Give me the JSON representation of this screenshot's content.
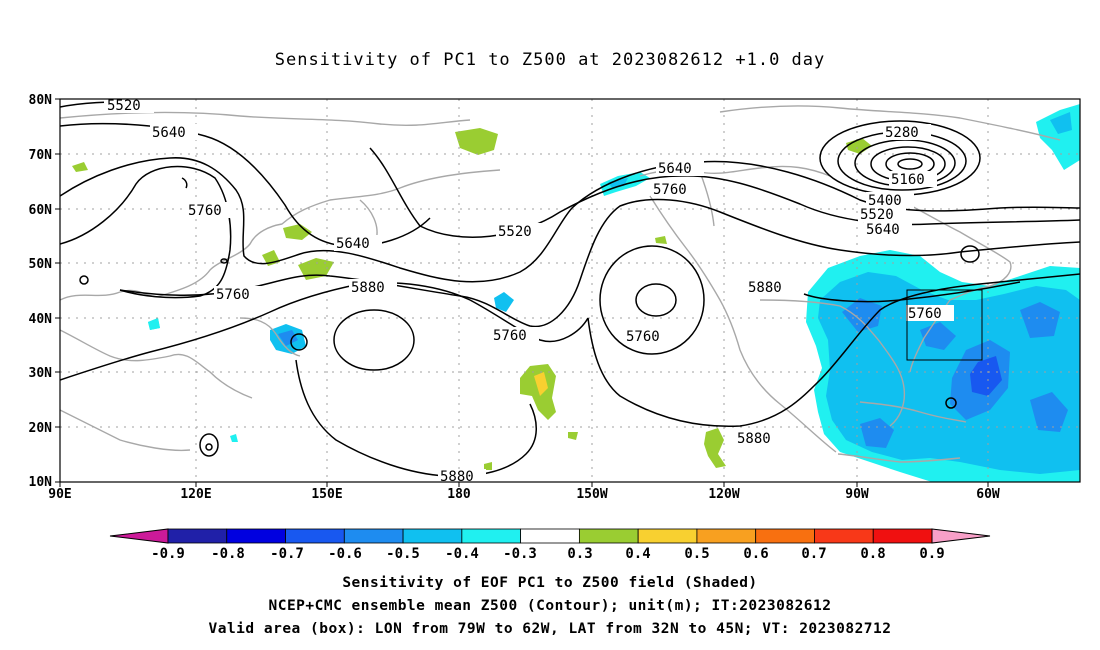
{
  "title": "Sensitivity of PC1 to Z500 at 2023082612 +1.0 day",
  "lat_labels": [
    "80N",
    "70N",
    "60N",
    "50N",
    "40N",
    "30N",
    "20N",
    "10N"
  ],
  "lon_labels": [
    "90E",
    "120E",
    "150E",
    "180",
    "150W",
    "120W",
    "90W",
    "60W"
  ],
  "contour_labels": {
    "c5520a": "5520",
    "c5640a": "5640",
    "c5760a": "5760",
    "c5640b": "5640",
    "c5760b": "5760",
    "c5880a": "5880",
    "c5520b": "5520",
    "c5760c": "5760",
    "c5640c": "5640",
    "c5760d": "5760",
    "c5760e": "5760",
    "c5880b": "5880",
    "c5880c": "5880",
    "c5280": "5280",
    "c5160": "5160",
    "c5400": "5400",
    "c5520c": "5520",
    "c5640d": "5640",
    "c5760f": "5760",
    "c5880d": "5880"
  },
  "colorbar": {
    "labels": [
      "-0.9",
      "-0.8",
      "-0.7",
      "-0.6",
      "-0.5",
      "-0.4",
      "-0.3",
      "0.3",
      "0.4",
      "0.5",
      "0.6",
      "0.7",
      "0.8",
      "0.9"
    ],
    "colors": [
      "#2020a8",
      "#0000e0",
      "#1858f0",
      "#1e8cf0",
      "#10c0f0",
      "#20f0f0",
      "#ffffff",
      "#9acd32",
      "#f8d030",
      "#f8a020",
      "#f87010",
      "#f83818",
      "#f01010"
    ],
    "low_end_color": "#cc1a99",
    "high_end_color": "#f8a0c8"
  },
  "caption": {
    "line1": "Sensitivity of EOF PC1 to Z500 field (Shaded)",
    "line2": "NCEP+CMC ensemble mean Z500 (Contour); unit(m); IT:2023082612",
    "line3": "Valid area (box): LON from 79W to 62W, LAT from 32N to 45N; VT: 2023082712"
  }
}
